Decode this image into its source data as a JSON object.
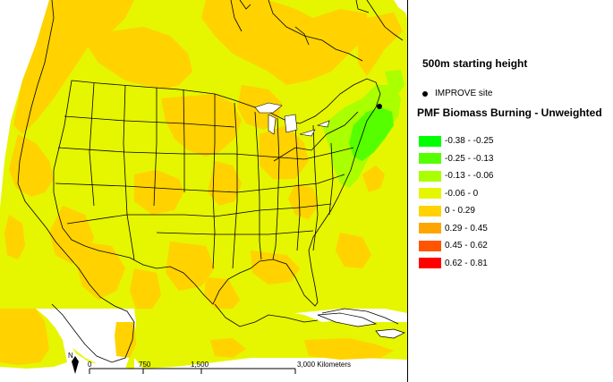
{
  "map": {
    "subtitle": "500m starting height",
    "site_legend_label": "IMPROVE site",
    "variable_title": "PMF Biomass Burning - Unweighted",
    "north_label": "N",
    "scale_labels": [
      "0",
      "750",
      "1,500",
      "3,000 Kilometers"
    ],
    "legend": [
      {
        "label": "-0.38 - -0.25",
        "color": "#00ff00"
      },
      {
        "label": "-0.25 - -0.13",
        "color": "#55ff00"
      },
      {
        "label": "-0.13 - -0.06",
        "color": "#aaff00"
      },
      {
        "label": "-0.06 - 0",
        "color": "#e6f500"
      },
      {
        "label": "0 - 0.29",
        "color": "#ffd200"
      },
      {
        "label": "0.29 - 0.45",
        "color": "#ffa500"
      },
      {
        "label": "0.45 - 0.62",
        "color": "#ff5500"
      },
      {
        "label": "0.62 - 0.81",
        "color": "#ff0000"
      }
    ]
  }
}
